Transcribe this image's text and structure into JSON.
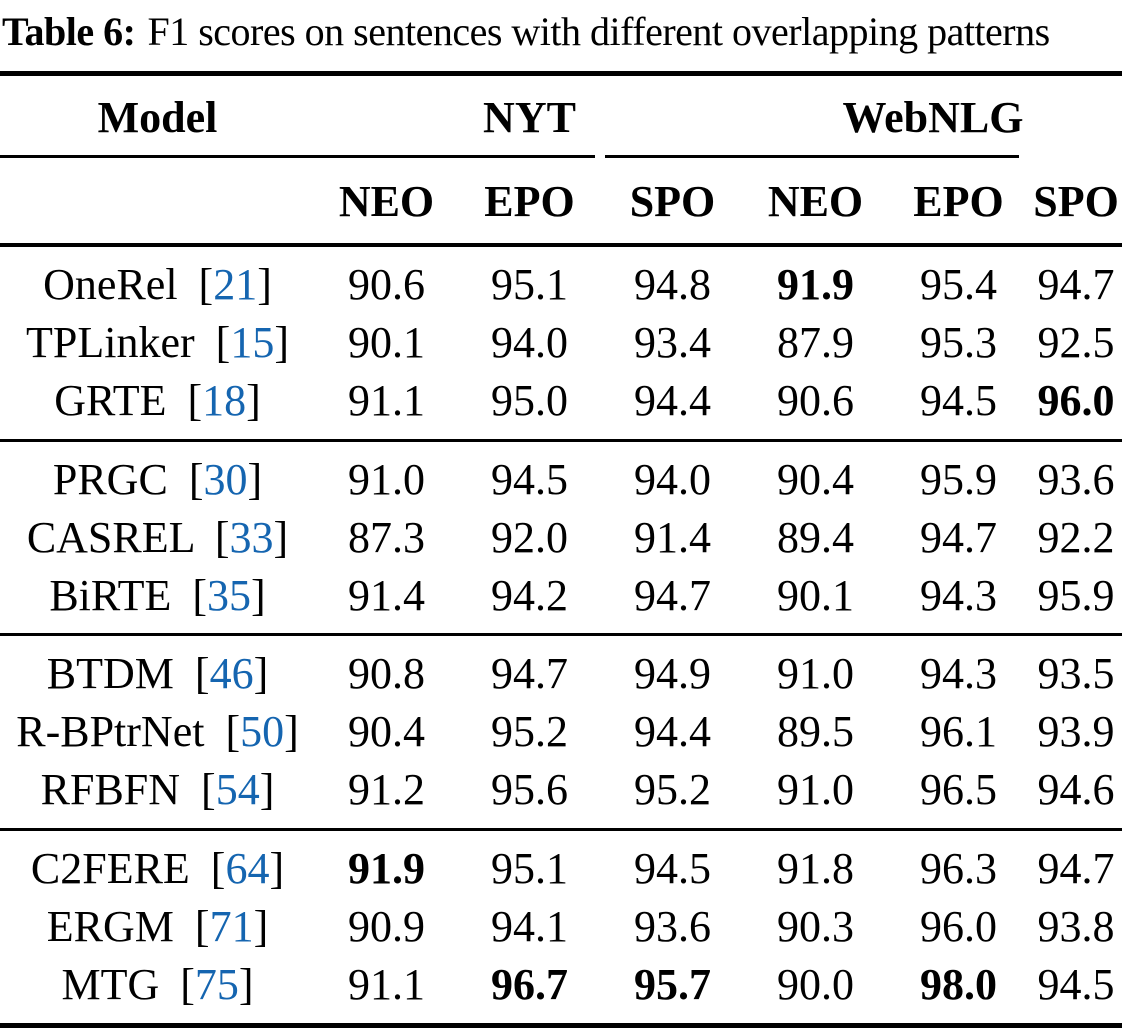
{
  "paper_table": {
    "caption": {
      "label": "Table 6:",
      "text": "F1 scores on sentences with different overlapping patterns"
    },
    "columns": {
      "model": "Model",
      "datasets": [
        "NYT",
        "WebNLG"
      ],
      "metrics": [
        "NEO",
        "EPO",
        "SPO",
        "NEO",
        "EPO",
        "SPO"
      ]
    },
    "groups": [
      {
        "rows": [
          {
            "model": "OneRel",
            "cite": "21",
            "values": [
              "90.6",
              "95.1",
              "94.8",
              "91.9",
              "95.4",
              "94.7"
            ],
            "bold": [
              3
            ]
          },
          {
            "model": "TPLinker",
            "cite": "15",
            "values": [
              "90.1",
              "94.0",
              "93.4",
              "87.9",
              "95.3",
              "92.5"
            ],
            "bold": []
          },
          {
            "model": "GRTE",
            "cite": "18",
            "values": [
              "91.1",
              "95.0",
              "94.4",
              "90.6",
              "94.5",
              "96.0"
            ],
            "bold": [
              5
            ]
          }
        ]
      },
      {
        "rows": [
          {
            "model": "PRGC",
            "cite": "30",
            "values": [
              "91.0",
              "94.5",
              "94.0",
              "90.4",
              "95.9",
              "93.6"
            ],
            "bold": []
          },
          {
            "model": "CASREL",
            "cite": "33",
            "values": [
              "87.3",
              "92.0",
              "91.4",
              "89.4",
              "94.7",
              "92.2"
            ],
            "bold": []
          },
          {
            "model": "BiRTE",
            "cite": "35",
            "values": [
              "91.4",
              "94.2",
              "94.7",
              "90.1",
              "94.3",
              "95.9"
            ],
            "bold": []
          }
        ]
      },
      {
        "rows": [
          {
            "model": "BTDM",
            "cite": "46",
            "values": [
              "90.8",
              "94.7",
              "94.9",
              "91.0",
              "94.3",
              "93.5"
            ],
            "bold": []
          },
          {
            "model": "R-BPtrNet",
            "cite": "50",
            "values": [
              "90.4",
              "95.2",
              "94.4",
              "89.5",
              "96.1",
              "93.9"
            ],
            "bold": []
          },
          {
            "model": "RFBFN",
            "cite": "54",
            "values": [
              "91.2",
              "95.6",
              "95.2",
              "91.0",
              "96.5",
              "94.6"
            ],
            "bold": []
          }
        ]
      },
      {
        "rows": [
          {
            "model": "C2FERE",
            "cite": "64",
            "values": [
              "91.9",
              "95.1",
              "94.5",
              "91.8",
              "96.3",
              "94.7"
            ],
            "bold": [
              0
            ]
          },
          {
            "model": "ERGM",
            "cite": "71",
            "values": [
              "90.9",
              "94.1",
              "93.6",
              "90.3",
              "96.0",
              "93.8"
            ],
            "bold": []
          },
          {
            "model": "MTG",
            "cite": "75",
            "values": [
              "91.1",
              "96.7",
              "95.7",
              "90.0",
              "98.0",
              "94.5"
            ],
            "bold": [
              1,
              2,
              4
            ]
          }
        ]
      }
    ]
  },
  "colors": {
    "citation": "#1565b0",
    "rule": "#000000",
    "background": "#ffffff",
    "text": "#000000"
  }
}
